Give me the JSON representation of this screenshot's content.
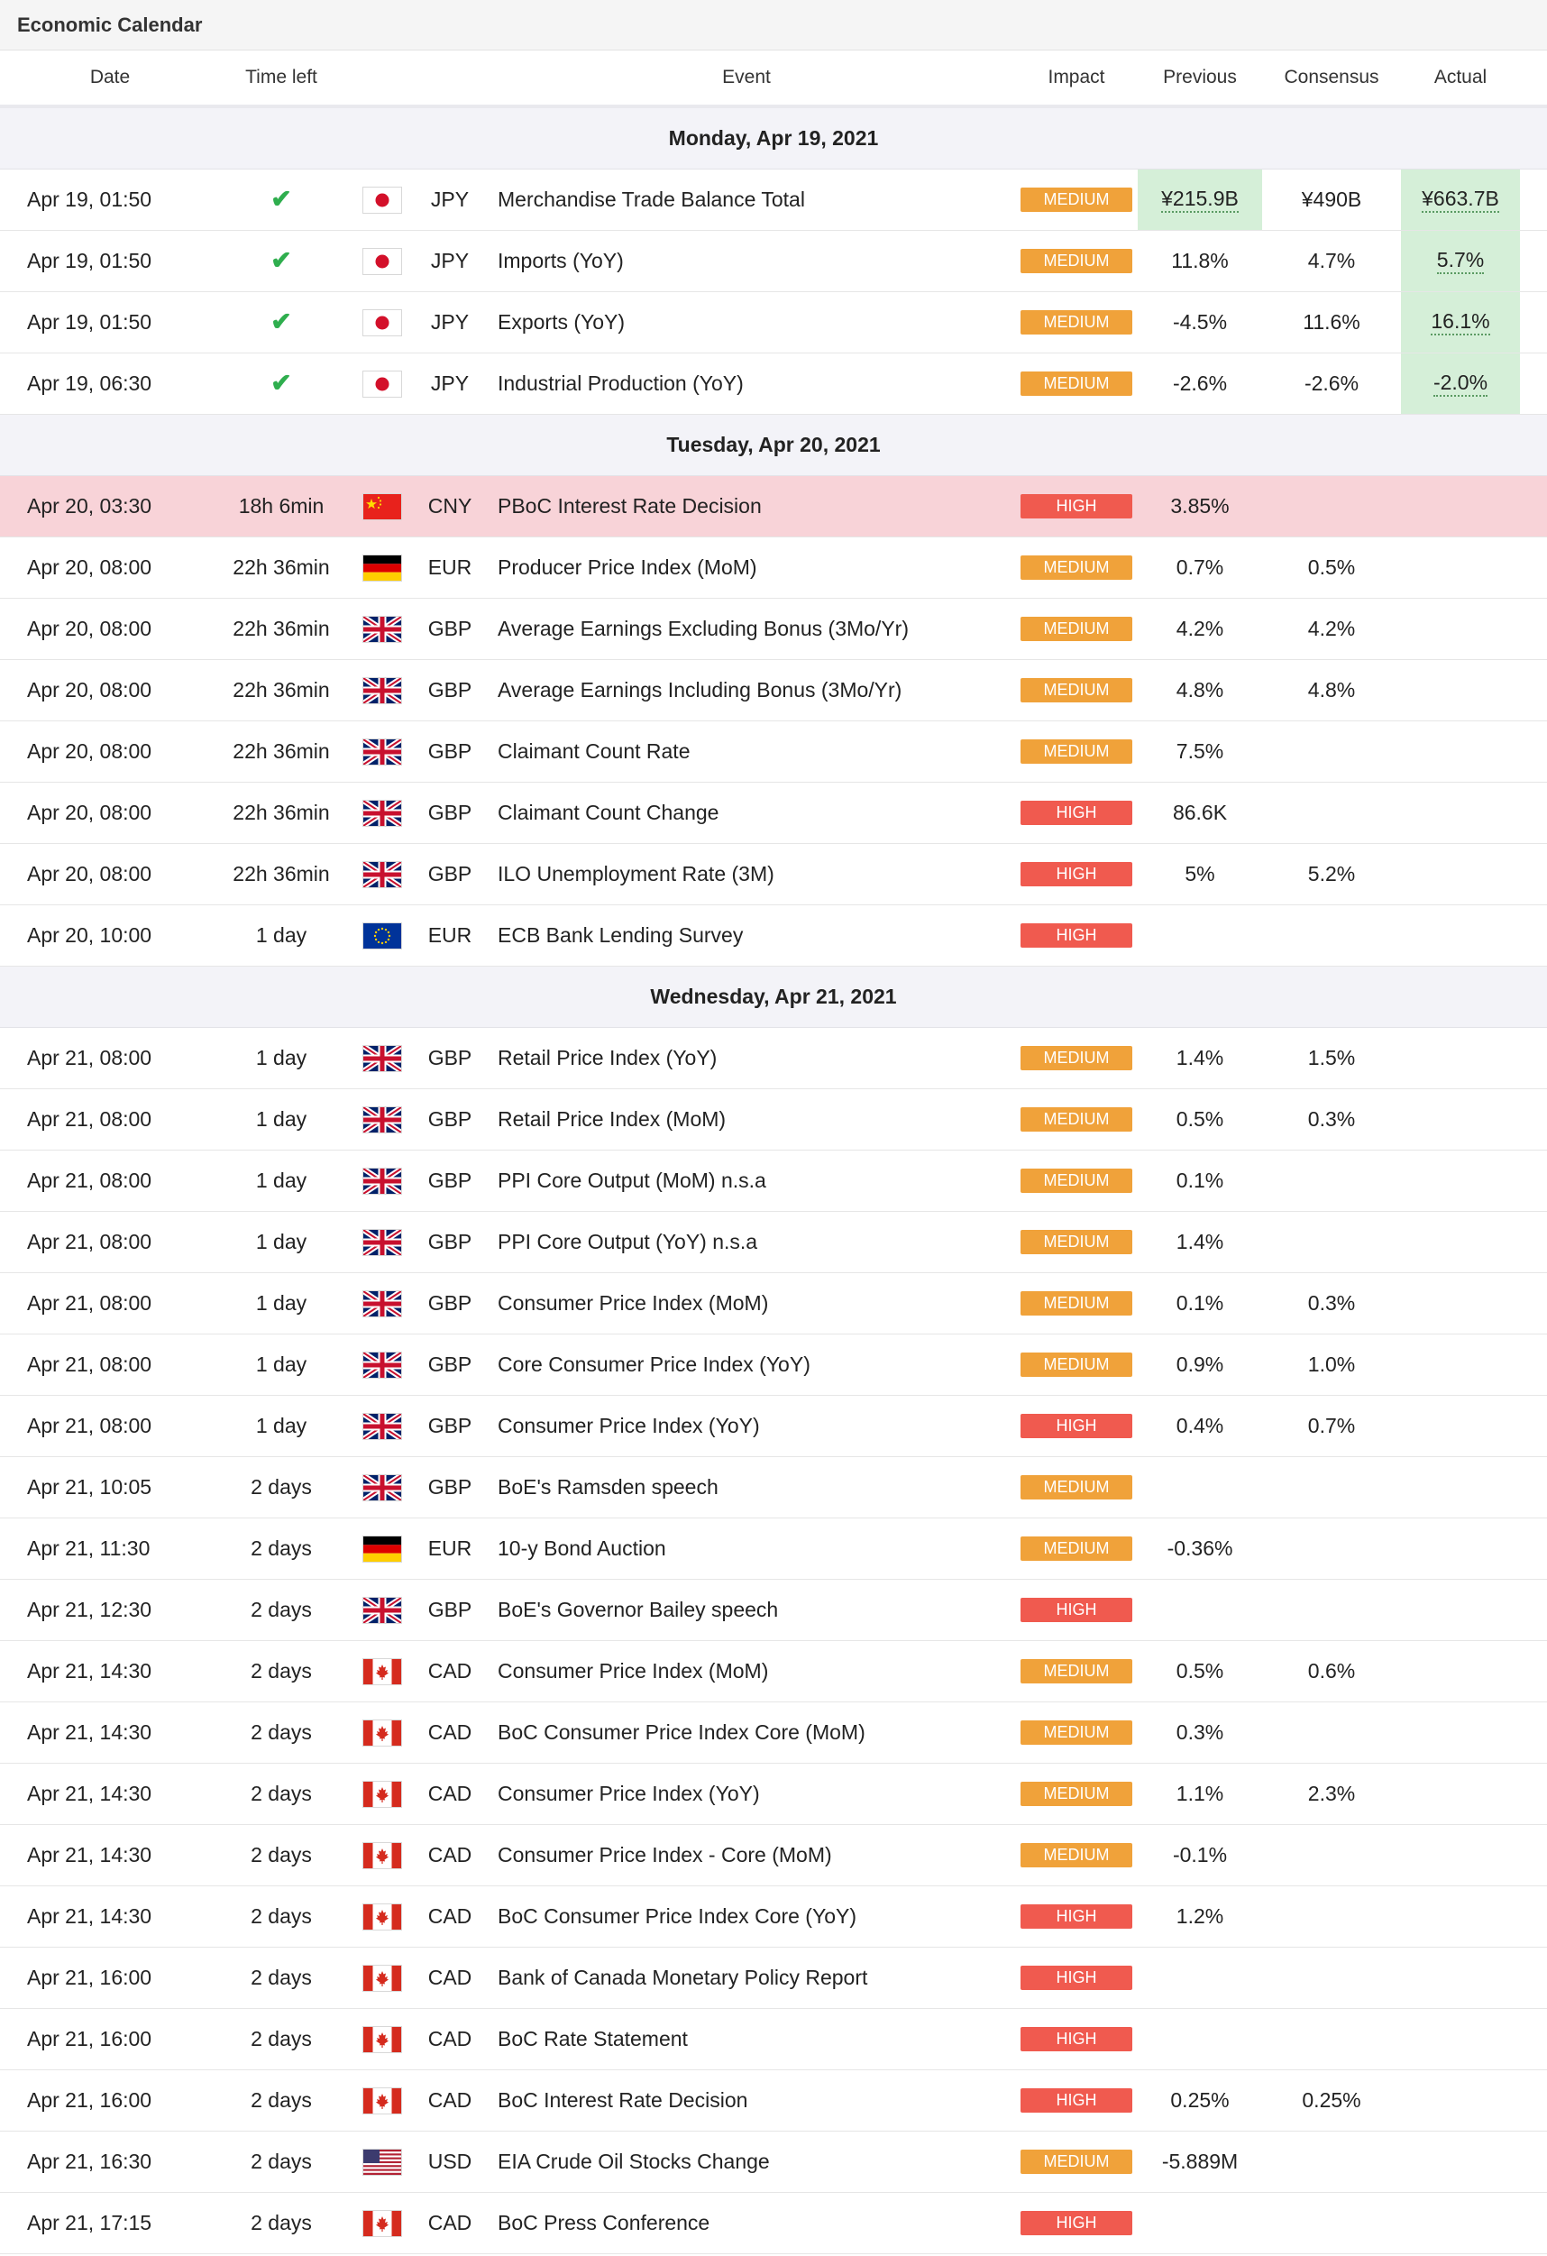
{
  "app": {
    "title": "Economic Calendar"
  },
  "columns": {
    "date": "Date",
    "time_left": "Time left",
    "event": "Event",
    "impact": "Impact",
    "previous": "Previous",
    "consensus": "Consensus",
    "actual": "Actual"
  },
  "colors": {
    "medium": "#f0a23a",
    "high": "#f05a4f",
    "high_row": "#f8d3d8",
    "released_highlight": "#d5efd8",
    "check": "#2fae4e"
  },
  "rows": [
    {
      "type": "day",
      "label": "Monday, Apr 19, 2021"
    },
    {
      "type": "event",
      "date": "Apr 19, 01:50",
      "time_left": "✔",
      "done": true,
      "flag": "jp",
      "currency": "JPY",
      "event": "Merchandise Trade Balance Total",
      "impact": "MEDIUM",
      "previous": "¥215.9B",
      "consensus": "¥490B",
      "actual": "¥663.7B",
      "prev_hl": true,
      "act_hl": true
    },
    {
      "type": "event",
      "date": "Apr 19, 01:50",
      "time_left": "✔",
      "done": true,
      "flag": "jp",
      "currency": "JPY",
      "event": "Imports (YoY)",
      "impact": "MEDIUM",
      "previous": "11.8%",
      "consensus": "4.7%",
      "actual": "5.7%",
      "act_hl": true
    },
    {
      "type": "event",
      "date": "Apr 19, 01:50",
      "time_left": "✔",
      "done": true,
      "flag": "jp",
      "currency": "JPY",
      "event": "Exports (YoY)",
      "impact": "MEDIUM",
      "previous": "-4.5%",
      "consensus": "11.6%",
      "actual": "16.1%",
      "act_hl": true
    },
    {
      "type": "event",
      "date": "Apr 19, 06:30",
      "time_left": "✔",
      "done": true,
      "flag": "jp",
      "currency": "JPY",
      "event": "Industrial Production (YoY)",
      "impact": "MEDIUM",
      "previous": "-2.6%",
      "consensus": "-2.6%",
      "actual": "-2.0%",
      "act_hl": true
    },
    {
      "type": "day",
      "label": "Tuesday, Apr 20, 2021"
    },
    {
      "type": "event",
      "date": "Apr 20, 03:30",
      "time_left": "18h 6min",
      "flag": "cn",
      "currency": "CNY",
      "event": "PBoC Interest Rate Decision",
      "impact": "HIGH",
      "previous": "3.85%",
      "consensus": "",
      "actual": "",
      "row_high": true
    },
    {
      "type": "event",
      "date": "Apr 20, 08:00",
      "time_left": "22h 36min",
      "flag": "de",
      "currency": "EUR",
      "event": "Producer Price Index (MoM)",
      "impact": "MEDIUM",
      "previous": "0.7%",
      "consensus": "0.5%",
      "actual": ""
    },
    {
      "type": "event",
      "date": "Apr 20, 08:00",
      "time_left": "22h 36min",
      "flag": "gb",
      "currency": "GBP",
      "event": "Average Earnings Excluding Bonus (3Mo/Yr)",
      "impact": "MEDIUM",
      "previous": "4.2%",
      "consensus": "4.2%",
      "actual": ""
    },
    {
      "type": "event",
      "date": "Apr 20, 08:00",
      "time_left": "22h 36min",
      "flag": "gb",
      "currency": "GBP",
      "event": "Average Earnings Including Bonus (3Mo/Yr)",
      "impact": "MEDIUM",
      "previous": "4.8%",
      "consensus": "4.8%",
      "actual": ""
    },
    {
      "type": "event",
      "date": "Apr 20, 08:00",
      "time_left": "22h 36min",
      "flag": "gb",
      "currency": "GBP",
      "event": "Claimant Count Rate",
      "impact": "MEDIUM",
      "previous": "7.5%",
      "consensus": "",
      "actual": ""
    },
    {
      "type": "event",
      "date": "Apr 20, 08:00",
      "time_left": "22h 36min",
      "flag": "gb",
      "currency": "GBP",
      "event": "Claimant Count Change",
      "impact": "HIGH",
      "previous": "86.6K",
      "consensus": "",
      "actual": ""
    },
    {
      "type": "event",
      "date": "Apr 20, 08:00",
      "time_left": "22h 36min",
      "flag": "gb",
      "currency": "GBP",
      "event": "ILO Unemployment Rate (3M)",
      "impact": "HIGH",
      "previous": "5%",
      "consensus": "5.2%",
      "actual": ""
    },
    {
      "type": "event",
      "date": "Apr 20, 10:00",
      "time_left": "1 day",
      "flag": "eu",
      "currency": "EUR",
      "event": "ECB Bank Lending Survey",
      "impact": "HIGH",
      "previous": "",
      "consensus": "",
      "actual": ""
    },
    {
      "type": "day",
      "label": "Wednesday, Apr 21, 2021"
    },
    {
      "type": "event",
      "date": "Apr 21, 08:00",
      "time_left": "1 day",
      "flag": "gb",
      "currency": "GBP",
      "event": "Retail Price Index (YoY)",
      "impact": "MEDIUM",
      "previous": "1.4%",
      "consensus": "1.5%",
      "actual": ""
    },
    {
      "type": "event",
      "date": "Apr 21, 08:00",
      "time_left": "1 day",
      "flag": "gb",
      "currency": "GBP",
      "event": "Retail Price Index (MoM)",
      "impact": "MEDIUM",
      "previous": "0.5%",
      "consensus": "0.3%",
      "actual": ""
    },
    {
      "type": "event",
      "date": "Apr 21, 08:00",
      "time_left": "1 day",
      "flag": "gb",
      "currency": "GBP",
      "event": "PPI Core Output (MoM) n.s.a",
      "impact": "MEDIUM",
      "previous": "0.1%",
      "consensus": "",
      "actual": ""
    },
    {
      "type": "event",
      "date": "Apr 21, 08:00",
      "time_left": "1 day",
      "flag": "gb",
      "currency": "GBP",
      "event": "PPI Core Output (YoY) n.s.a",
      "impact": "MEDIUM",
      "previous": "1.4%",
      "consensus": "",
      "actual": ""
    },
    {
      "type": "event",
      "date": "Apr 21, 08:00",
      "time_left": "1 day",
      "flag": "gb",
      "currency": "GBP",
      "event": "Consumer Price Index (MoM)",
      "impact": "MEDIUM",
      "previous": "0.1%",
      "consensus": "0.3%",
      "actual": ""
    },
    {
      "type": "event",
      "date": "Apr 21, 08:00",
      "time_left": "1 day",
      "flag": "gb",
      "currency": "GBP",
      "event": "Core Consumer Price Index (YoY)",
      "impact": "MEDIUM",
      "previous": "0.9%",
      "consensus": "1.0%",
      "actual": ""
    },
    {
      "type": "event",
      "date": "Apr 21, 08:00",
      "time_left": "1 day",
      "flag": "gb",
      "currency": "GBP",
      "event": "Consumer Price Index (YoY)",
      "impact": "HIGH",
      "previous": "0.4%",
      "consensus": "0.7%",
      "actual": ""
    },
    {
      "type": "event",
      "date": "Apr 21, 10:05",
      "time_left": "2 days",
      "flag": "gb",
      "currency": "GBP",
      "event": "BoE's Ramsden speech",
      "impact": "MEDIUM",
      "previous": "",
      "consensus": "",
      "actual": ""
    },
    {
      "type": "event",
      "date": "Apr 21, 11:30",
      "time_left": "2 days",
      "flag": "de",
      "currency": "EUR",
      "event": "10-y Bond Auction",
      "impact": "MEDIUM",
      "previous": "-0.36%",
      "consensus": "",
      "actual": ""
    },
    {
      "type": "event",
      "date": "Apr 21, 12:30",
      "time_left": "2 days",
      "flag": "gb",
      "currency": "GBP",
      "event": "BoE's Governor Bailey speech",
      "impact": "HIGH",
      "previous": "",
      "consensus": "",
      "actual": ""
    },
    {
      "type": "event",
      "date": "Apr 21, 14:30",
      "time_left": "2 days",
      "flag": "ca",
      "currency": "CAD",
      "event": "Consumer Price Index (MoM)",
      "impact": "MEDIUM",
      "previous": "0.5%",
      "consensus": "0.6%",
      "actual": ""
    },
    {
      "type": "event",
      "date": "Apr 21, 14:30",
      "time_left": "2 days",
      "flag": "ca",
      "currency": "CAD",
      "event": "BoC Consumer Price Index Core (MoM)",
      "impact": "MEDIUM",
      "previous": "0.3%",
      "consensus": "",
      "actual": ""
    },
    {
      "type": "event",
      "date": "Apr 21, 14:30",
      "time_left": "2 days",
      "flag": "ca",
      "currency": "CAD",
      "event": "Consumer Price Index (YoY)",
      "impact": "MEDIUM",
      "previous": "1.1%",
      "consensus": "2.3%",
      "actual": ""
    },
    {
      "type": "event",
      "date": "Apr 21, 14:30",
      "time_left": "2 days",
      "flag": "ca",
      "currency": "CAD",
      "event": "Consumer Price Index - Core (MoM)",
      "impact": "MEDIUM",
      "previous": "-0.1%",
      "consensus": "",
      "actual": ""
    },
    {
      "type": "event",
      "date": "Apr 21, 14:30",
      "time_left": "2 days",
      "flag": "ca",
      "currency": "CAD",
      "event": "BoC Consumer Price Index Core (YoY)",
      "impact": "HIGH",
      "previous": "1.2%",
      "consensus": "",
      "actual": ""
    },
    {
      "type": "event",
      "date": "Apr 21, 16:00",
      "time_left": "2 days",
      "flag": "ca",
      "currency": "CAD",
      "event": "Bank of Canada Monetary Policy Report",
      "impact": "HIGH",
      "previous": "",
      "consensus": "",
      "actual": ""
    },
    {
      "type": "event",
      "date": "Apr 21, 16:00",
      "time_left": "2 days",
      "flag": "ca",
      "currency": "CAD",
      "event": "BoC Rate Statement",
      "impact": "HIGH",
      "previous": "",
      "consensus": "",
      "actual": ""
    },
    {
      "type": "event",
      "date": "Apr 21, 16:00",
      "time_left": "2 days",
      "flag": "ca",
      "currency": "CAD",
      "event": "BoC Interest Rate Decision",
      "impact": "HIGH",
      "previous": "0.25%",
      "consensus": "0.25%",
      "actual": ""
    },
    {
      "type": "event",
      "date": "Apr 21, 16:30",
      "time_left": "2 days",
      "flag": "us",
      "currency": "USD",
      "event": "EIA Crude Oil Stocks Change",
      "impact": "MEDIUM",
      "previous": "-5.889M",
      "consensus": "",
      "actual": ""
    },
    {
      "type": "event",
      "date": "Apr 21, 17:15",
      "time_left": "2 days",
      "flag": "ca",
      "currency": "CAD",
      "event": "BoC Press Conference",
      "impact": "HIGH",
      "previous": "",
      "consensus": "",
      "actual": ""
    }
  ]
}
